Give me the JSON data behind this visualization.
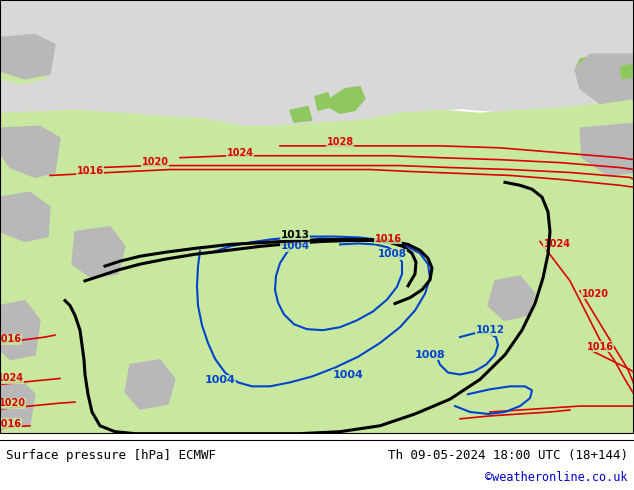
{
  "title_left": "Surface pressure [hPa] ECMWF",
  "title_right": "Th 09-05-2024 18:00 UTC (18+144)",
  "credit": "©weatheronline.co.uk",
  "fig_width": 6.34,
  "fig_height": 4.9,
  "land_color": "#c8e8a0",
  "sea_color": "#d8d8d8",
  "bg_top_color": "#d8d8d8",
  "title_fontsize": 9.0,
  "credit_fontsize": 8.5,
  "credit_color": "#0000cc",
  "red_color": "#dd0000",
  "blue_color": "#0044cc",
  "black_color": "#000000"
}
